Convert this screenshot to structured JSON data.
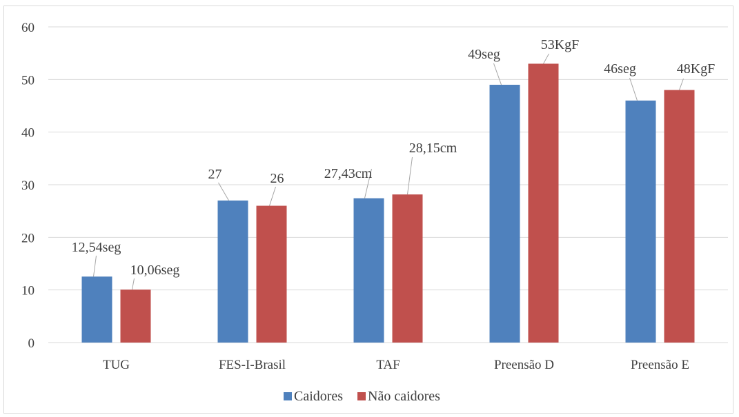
{
  "chart_data": {
    "type": "bar",
    "categories": [
      "TUG",
      "FES-I-Brasil",
      "TAF",
      "Preensão D",
      "Preensão E"
    ],
    "series": [
      {
        "name": "Caidores",
        "color": "#4F81BD",
        "values": [
          12.54,
          27,
          27.43,
          49,
          46
        ],
        "labels": [
          "12,54seg",
          "27",
          "27,43cm",
          "49seg",
          "46seg"
        ]
      },
      {
        "name": "Não caidores",
        "color": "#C0504D",
        "values": [
          10.06,
          26,
          28.15,
          53,
          48
        ],
        "labels": [
          "10,06seg",
          "26",
          "28,15cm",
          "53KgF",
          "48KgF"
        ]
      }
    ],
    "y_ticks": [
      "0",
      "10",
      "20",
      "30",
      "40",
      "50",
      "60"
    ],
    "ylim": [
      0,
      60
    ],
    "y_tick_step": 10,
    "grid": true,
    "legend_position": "bottom",
    "title": "",
    "xlabel": "",
    "ylabel": ""
  }
}
